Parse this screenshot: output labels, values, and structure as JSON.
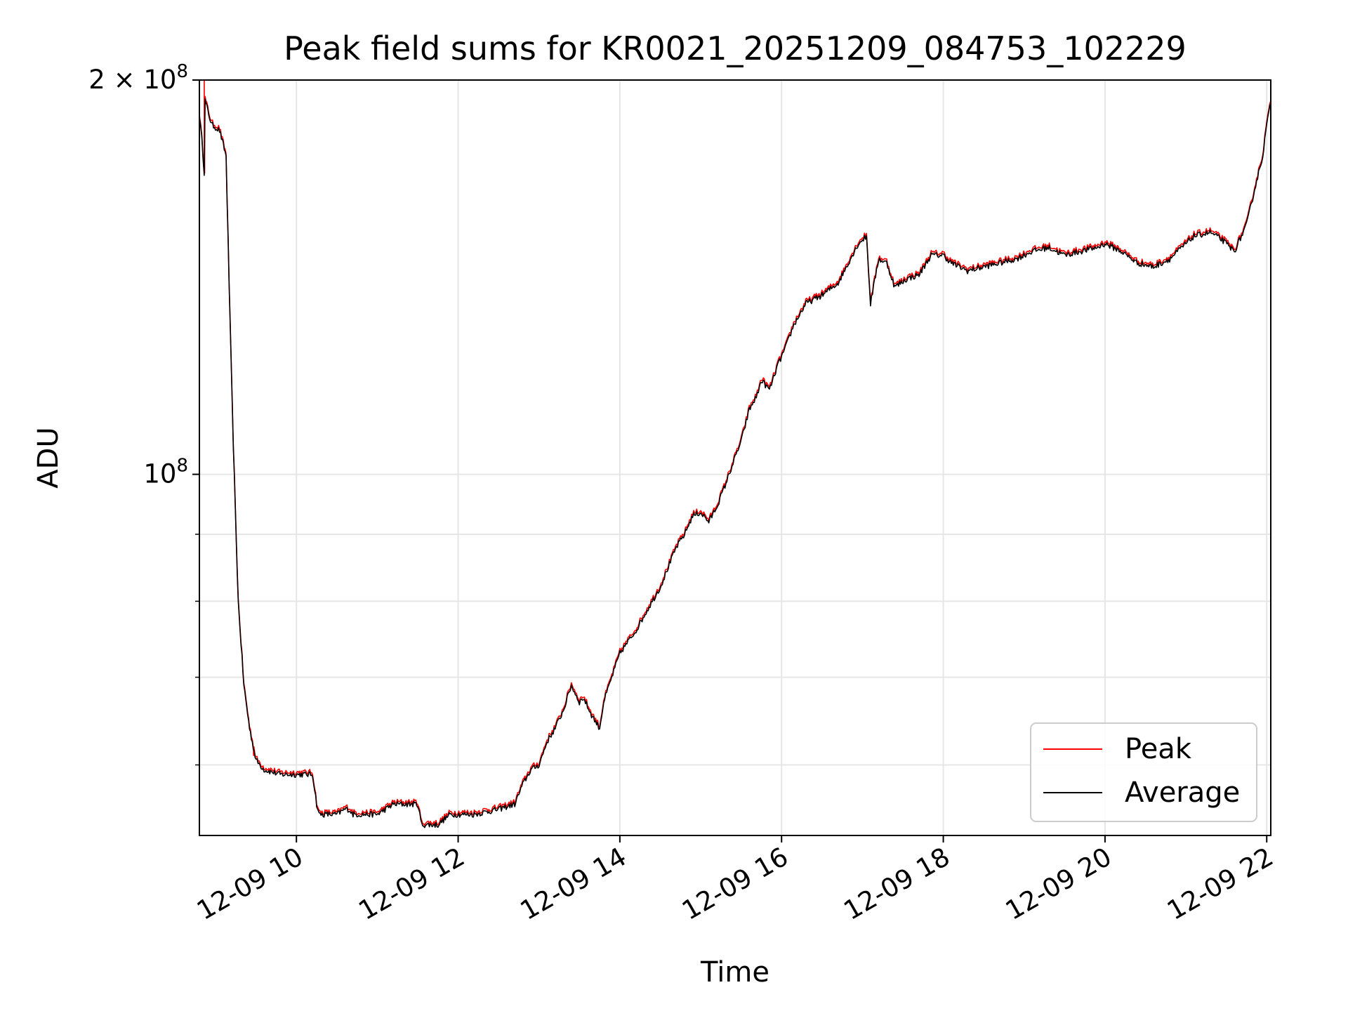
{
  "chart_data": {
    "type": "line",
    "title": "Peak field sums for KR0021_20251209_084753_102229",
    "xlabel": "Time",
    "ylabel": "ADU",
    "yscale": "log",
    "xlim_hours": [
      8.8,
      22.05
    ],
    "ylim": [
      53000000,
      200000000
    ],
    "grid": true,
    "legend_position": "lower-right",
    "x_ticks": [
      {
        "hour": 10,
        "label": "12-09 10"
      },
      {
        "hour": 12,
        "label": "12-09 12"
      },
      {
        "hour": 14,
        "label": "12-09 14"
      },
      {
        "hour": 16,
        "label": "12-09 16"
      },
      {
        "hour": 18,
        "label": "12-09 18"
      },
      {
        "hour": 20,
        "label": "12-09 20"
      },
      {
        "hour": 22,
        "label": "12-09 22"
      }
    ],
    "y_ticks": [
      {
        "value": 100000000,
        "label_base": "10",
        "label_exp": "8",
        "label_coef": ""
      },
      {
        "value": 200000000,
        "label_base": "10",
        "label_exp": "8",
        "label_coef": "2 × "
      }
    ],
    "y_minor_ticks": [
      60000000,
      70000000,
      80000000,
      90000000
    ],
    "series": [
      {
        "name": "Peak",
        "color": "#ff0000",
        "offset": 1.004,
        "spikes": [
          [
            8.86,
            200000000
          ],
          [
            9.47,
            61000000
          ]
        ]
      },
      {
        "name": "Average",
        "color": "#000000",
        "offset": 1.0,
        "spikes": []
      }
    ],
    "x": [
      8.8,
      8.83,
      8.86,
      8.87,
      8.95,
      9.05,
      9.13,
      9.18,
      9.22,
      9.28,
      9.35,
      9.42,
      9.5,
      9.6,
      9.8,
      10.0,
      10.2,
      10.25,
      10.28,
      10.5,
      10.6,
      10.65,
      10.7,
      11.0,
      11.2,
      11.5,
      11.55,
      11.75,
      11.9,
      12.2,
      12.5,
      12.7,
      12.8,
      12.9,
      13.0,
      13.1,
      13.2,
      13.3,
      13.4,
      13.5,
      13.55,
      13.65,
      13.75,
      13.8,
      13.9,
      14.0,
      14.1,
      14.2,
      14.3,
      14.4,
      14.5,
      14.6,
      14.7,
      14.8,
      14.9,
      15.0,
      15.1,
      15.2,
      15.3,
      15.4,
      15.5,
      15.6,
      15.7,
      15.75,
      15.85,
      15.95,
      16.05,
      16.15,
      16.3,
      16.5,
      16.7,
      16.85,
      16.95,
      17.05,
      17.1,
      17.2,
      17.3,
      17.4,
      17.55,
      17.7,
      17.85,
      18.0,
      18.1,
      18.3,
      18.5,
      18.7,
      18.9,
      19.1,
      19.3,
      19.5,
      19.7,
      19.9,
      20.0,
      20.2,
      20.4,
      20.6,
      20.8,
      21.0,
      21.1,
      21.3,
      21.45,
      21.6,
      21.75,
      21.85,
      21.95,
      22.0,
      22.05
    ],
    "y": [
      188000000,
      180000000,
      170000000,
      193000000,
      185000000,
      183000000,
      175000000,
      130000000,
      105000000,
      80000000,
      69000000,
      64000000,
      60500000,
      59500000,
      59000000,
      59000000,
      59000000,
      56000000,
      55000000,
      55000000,
      55500000,
      55500000,
      55000000,
      55000000,
      56000000,
      56000000,
      54000000,
      54000000,
      55000000,
      55000000,
      55500000,
      56000000,
      58000000,
      59500000,
      60000000,
      62500000,
      64000000,
      66000000,
      69000000,
      67000000,
      67500000,
      65500000,
      64000000,
      67000000,
      70000000,
      73000000,
      74500000,
      76000000,
      78000000,
      80000000,
      82000000,
      85000000,
      88000000,
      90000000,
      93000000,
      93500000,
      92000000,
      94500000,
      98000000,
      102000000,
      106000000,
      112000000,
      115000000,
      118000000,
      116000000,
      121000000,
      125000000,
      130000000,
      135000000,
      137000000,
      140000000,
      146000000,
      150000000,
      152000000,
      135000000,
      146000000,
      145000000,
      139000000,
      141000000,
      142000000,
      147000000,
      147000000,
      145000000,
      143000000,
      144000000,
      145000000,
      146000000,
      148000000,
      149000000,
      147000000,
      148000000,
      149000000,
      150000000,
      148000000,
      145000000,
      144000000,
      146000000,
      150000000,
      152000000,
      153000000,
      151000000,
      148000000,
      155000000,
      165000000,
      175000000,
      185000000,
      192000000
    ]
  }
}
